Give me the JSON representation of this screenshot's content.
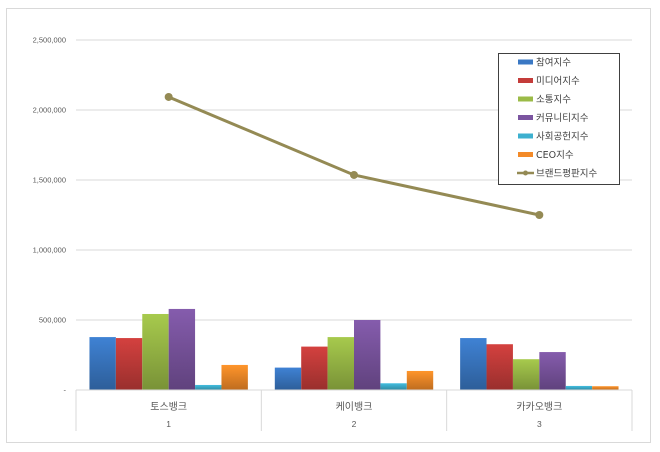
{
  "chart_data": {
    "type": "bar",
    "title": "",
    "xlabel": "",
    "ylabel": "",
    "ylim": [
      0,
      2500000
    ],
    "y_ticks": [
      {
        "value": 0,
        "label": "-"
      },
      {
        "value": 500000,
        "label": "500,000"
      },
      {
        "value": 1000000,
        "label": "1,000,000"
      },
      {
        "value": 1500000,
        "label": "1,500,000"
      },
      {
        "value": 2000000,
        "label": "2,000,000"
      },
      {
        "value": 2500000,
        "label": "2,500,000"
      }
    ],
    "grid": true,
    "legend_position": "upper-right-inside",
    "categories": [
      "토스뱅크",
      "케이뱅크",
      "카카오뱅크"
    ],
    "category_sublabels": [
      "1",
      "2",
      "3"
    ],
    "series": [
      {
        "name": "참여지수",
        "type": "bar",
        "color": "#3A78C4",
        "values": [
          378000,
          160000,
          371000
        ]
      },
      {
        "name": "미디어지수",
        "type": "bar",
        "color": "#C43C3A",
        "values": [
          371000,
          310000,
          327000
        ]
      },
      {
        "name": "소통지수",
        "type": "bar",
        "color": "#9BBB47",
        "values": [
          543000,
          378000,
          220000
        ]
      },
      {
        "name": "커뮤니티지수",
        "type": "bar",
        "color": "#7B55A0",
        "values": [
          579000,
          500000,
          271000
        ]
      },
      {
        "name": "사회공헌지수",
        "type": "bar",
        "color": "#3DB0CF",
        "values": [
          36000,
          48000,
          29000
        ]
      },
      {
        "name": "CEO지수",
        "type": "bar",
        "color": "#F38A28",
        "values": [
          179000,
          136000,
          27000
        ]
      },
      {
        "name": "브랜드평판지수",
        "type": "line",
        "color": "#948A54",
        "values": [
          2093000,
          1536000,
          1250000
        ]
      }
    ]
  }
}
